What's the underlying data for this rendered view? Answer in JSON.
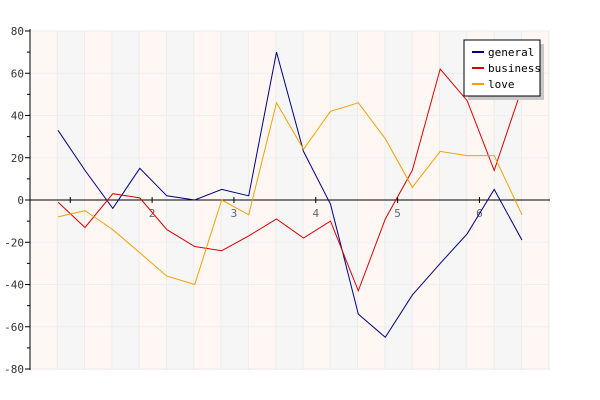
{
  "chart_data": {
    "type": "line",
    "ylim": [
      -80,
      80
    ],
    "yticks": [
      -80,
      -60,
      -40,
      -20,
      0,
      20,
      40,
      60,
      80
    ],
    "xticks": [
      2,
      3,
      4,
      5,
      6
    ],
    "x": [
      0.85,
      1.18,
      1.52,
      1.85,
      2.18,
      2.52,
      2.85,
      3.18,
      3.52,
      3.85,
      4.18,
      4.52,
      4.85,
      5.18,
      5.52,
      5.85,
      6.18,
      6.52,
      6.85
    ],
    "grid": true,
    "legend_position": "top-right",
    "series": [
      {
        "name": "general",
        "color": "#000080",
        "values": [
          33,
          14,
          -4,
          15,
          2,
          0,
          5,
          2,
          70,
          23,
          -2,
          -54,
          -65,
          -45,
          -30,
          -16,
          5,
          -19,
          null
        ]
      },
      {
        "name": "business",
        "color": "#dd0000",
        "values": [
          -1,
          -13,
          3,
          1,
          -14,
          -22,
          -24,
          -17,
          -9,
          -18,
          -10,
          -43,
          -9,
          14,
          62,
          47,
          14,
          53,
          null
        ]
      },
      {
        "name": "love",
        "color": "#f5a000",
        "values": [
          -8,
          -5,
          -14,
          -25,
          -36,
          -40,
          0,
          -7,
          46,
          24,
          42,
          46,
          29,
          6,
          23,
          21,
          21,
          -7,
          null
        ]
      }
    ]
  }
}
